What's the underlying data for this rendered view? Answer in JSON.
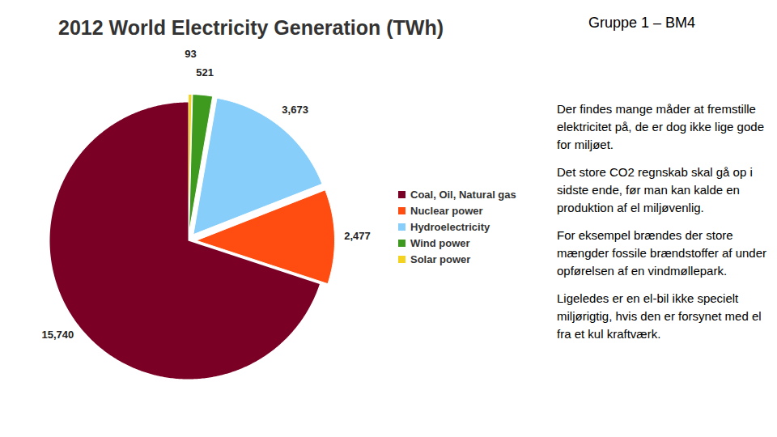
{
  "chart_data": {
    "type": "pie",
    "title": "2012 World Electricity Generation (TWh)",
    "categories": [
      "Coal, Oil, Natural gas",
      "Nuclear power",
      "Hydroelectricity",
      "Wind power",
      "Solar power"
    ],
    "values": [
      15740,
      2477,
      3673,
      521,
      93
    ],
    "value_labels": [
      "15,740",
      "2,477",
      "3,673",
      "521",
      "93"
    ],
    "colors": [
      "#7b0025",
      "#ff4d11",
      "#87cefa",
      "#3e9a1f",
      "#f3d320"
    ],
    "data_labels": true,
    "legend": "right"
  },
  "slide": {
    "heading": "Gruppe 1 – BM4",
    "paragraphs": [
      "Der findes mange måder at fremstille elektricitet på, de er dog ikke lige gode for miljøet.",
      "Det store CO2 regnskab skal gå op i sidste ende, før man kan kalde en produktion af el miljøvenlig.",
      "For eksempel brændes der store mængder fossile brændstoffer af under opførelsen af en vindmøllepark.",
      "Ligeledes er en el-bil ikke specielt miljørigtig, hvis den er forsynet med el fra et kul kraftværk."
    ]
  }
}
